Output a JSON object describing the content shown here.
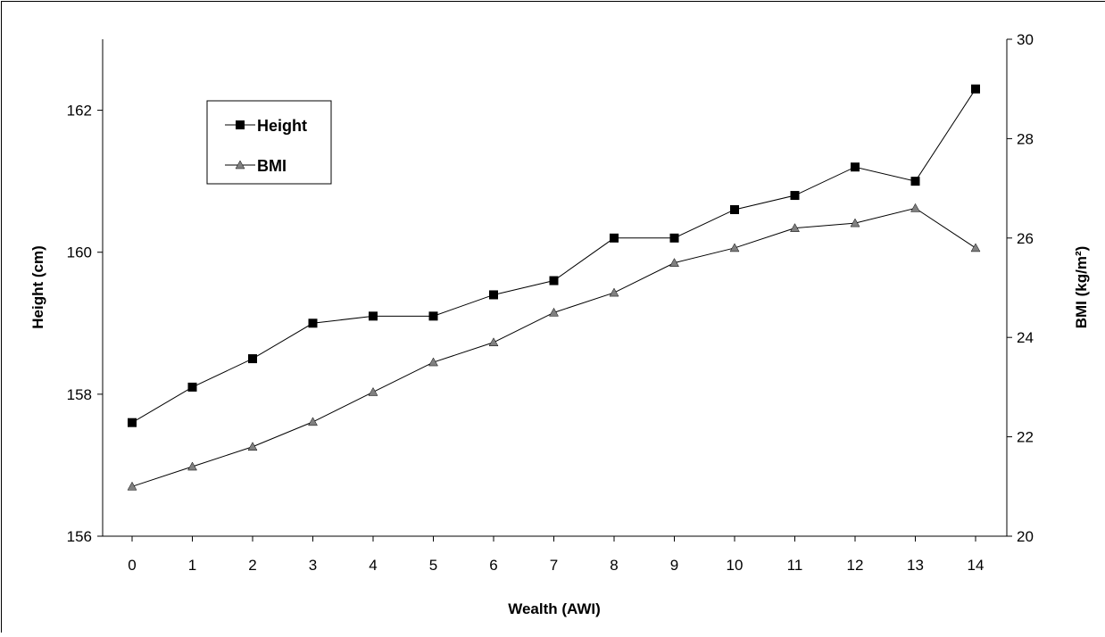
{
  "chart_data": {
    "type": "line",
    "xlabel": "Wealth (AWI)",
    "ylabel_left": "Height (cm)",
    "ylabel_right": "BMI (kg/m²)",
    "x": [
      0,
      1,
      2,
      3,
      4,
      5,
      6,
      7,
      8,
      9,
      10,
      11,
      12,
      13,
      14
    ],
    "ylim_left": [
      156,
      163
    ],
    "ylim_right": [
      20,
      30
    ],
    "yticks_left": [
      156,
      158,
      160,
      162
    ],
    "yticks_right": [
      20,
      22,
      24,
      26,
      28,
      30
    ],
    "grid": false,
    "legend_position": "upper-left",
    "series": [
      {
        "name": "Height",
        "axis": "left",
        "marker": "square",
        "color": "#000000",
        "values": [
          157.6,
          158.1,
          158.5,
          159.0,
          159.1,
          159.1,
          159.4,
          159.6,
          160.2,
          160.2,
          160.6,
          160.8,
          161.2,
          161.0,
          162.3
        ]
      },
      {
        "name": "BMI",
        "axis": "right",
        "marker": "triangle",
        "color": "#808080",
        "values": [
          21.0,
          21.4,
          21.8,
          22.3,
          22.9,
          23.5,
          23.9,
          24.5,
          24.9,
          25.5,
          25.8,
          26.2,
          26.3,
          26.6,
          25.8
        ]
      }
    ]
  }
}
